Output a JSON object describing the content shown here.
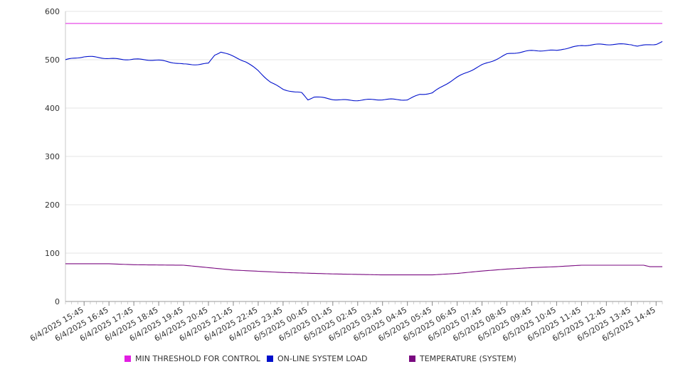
{
  "chart_data": {
    "type": "line",
    "title": "",
    "xlabel": "",
    "ylabel": "",
    "ylim": [
      0,
      600
    ],
    "y_ticks": [
      0,
      100,
      200,
      300,
      400,
      500,
      600
    ],
    "grid": true,
    "legend_position": "bottom",
    "x_tick_labels": [
      "6/4/2025 15:45",
      "6/4/2025 16:45",
      "6/4/2025 17:45",
      "6/4/2025 18:45",
      "6/4/2025 19:45",
      "6/4/2025 20:45",
      "6/4/2025 21:45",
      "6/4/2025 22:45",
      "6/4/2025 23:45",
      "6/5/2025 00:45",
      "6/5/2025 01:45",
      "6/5/2025 02:45",
      "6/5/2025 03:45",
      "6/5/2025 04:45",
      "6/5/2025 05:45",
      "6/5/2025 06:45",
      "6/5/2025 07:45",
      "6/5/2025 08:45",
      "6/5/2025 09:45",
      "6/5/2025 10:45",
      "6/5/2025 11:45",
      "6/5/2025 12:45",
      "6/5/2025 13:45",
      "6/5/2025 14:45"
    ],
    "series": [
      {
        "name": "MIN THRESHOLD FOR CONTROL",
        "color": "#e21ee2",
        "x": [
          "6/4/2025 15:00",
          "6/5/2025 15:00"
        ],
        "values": [
          575,
          575
        ]
      },
      {
        "name": "ON-LINE SYSTEM LOAD",
        "color": "#0010cc",
        "x": [
          "6/4/2025 15:00",
          "6/4/2025 15:45",
          "6/4/2025 16:45",
          "6/4/2025 17:45",
          "6/4/2025 18:45",
          "6/4/2025 19:45",
          "6/4/2025 20:45",
          "6/4/2025 21:00",
          "6/4/2025 21:15",
          "6/4/2025 21:45",
          "6/4/2025 22:15",
          "6/4/2025 22:45",
          "6/4/2025 23:15",
          "6/4/2025 23:45",
          "6/5/2025 00:15",
          "6/5/2025 00:30",
          "6/5/2025 00:45",
          "6/5/2025 01:00",
          "6/5/2025 01:45",
          "6/5/2025 02:45",
          "6/5/2025 03:45",
          "6/5/2025 04:45",
          "6/5/2025 05:15",
          "6/5/2025 05:45",
          "6/5/2025 06:45",
          "6/5/2025 07:45",
          "6/5/2025 08:45",
          "6/5/2025 09:45",
          "6/5/2025 10:45",
          "6/5/2025 11:00",
          "6/5/2025 11:45",
          "6/5/2025 12:45",
          "6/5/2025 13:45",
          "6/5/2025 14:00",
          "6/5/2025 14:45",
          "6/5/2025 15:00"
        ],
        "values": [
          500,
          505,
          503,
          502,
          497,
          491,
          493,
          510,
          516,
          505,
          495,
          478,
          455,
          440,
          432,
          430,
          416,
          422,
          419,
          417,
          416,
          418,
          430,
          432,
          462,
          490,
          512,
          517,
          520,
          524,
          530,
          530,
          533,
          530,
          533,
          537
        ]
      },
      {
        "name": "TEMPERATURE (SYSTEM)",
        "color": "#7a0a80",
        "x": [
          "6/4/2025 15:00",
          "6/4/2025 16:45",
          "6/4/2025 17:45",
          "6/4/2025 19:45",
          "6/4/2025 20:45",
          "6/4/2025 21:45",
          "6/4/2025 23:45",
          "6/5/2025 01:45",
          "6/5/2025 03:45",
          "6/5/2025 05:45",
          "6/5/2025 06:45",
          "6/5/2025 07:45",
          "6/5/2025 08:45",
          "6/5/2025 09:45",
          "6/5/2025 10:45",
          "6/5/2025 11:45",
          "6/5/2025 13:45",
          "6/5/2025 14:15",
          "6/5/2025 14:30",
          "6/5/2025 15:00"
        ],
        "values": [
          78,
          78,
          76,
          75,
          70,
          65,
          60,
          57,
          55,
          55,
          58,
          63,
          67,
          70,
          72,
          75,
          75,
          75,
          72,
          72
        ]
      }
    ]
  }
}
